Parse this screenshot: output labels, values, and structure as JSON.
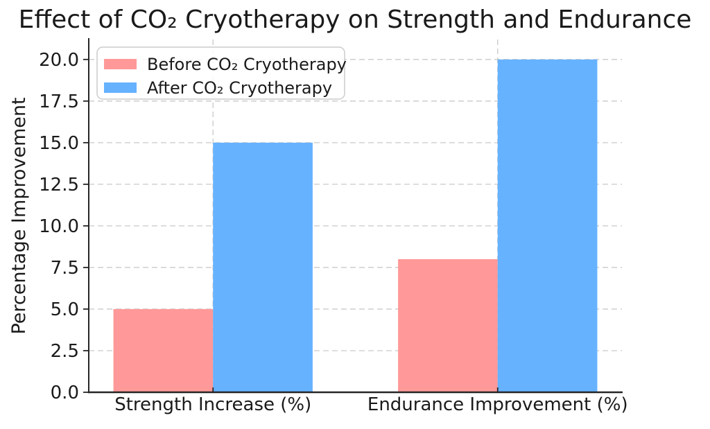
{
  "chart_data": {
    "type": "bar",
    "title": "Effect of CO₂ Cryotherapy on Strength and Endurance",
    "categories": [
      "Strength Increase (%)",
      "Endurance Improvement (%)"
    ],
    "series": [
      {
        "name": "Before CO₂ Cryotherapy",
        "color": "#FF9999",
        "values": [
          5,
          8
        ]
      },
      {
        "name": "After CO₂ Cryotherapy",
        "color": "#66B2FF",
        "values": [
          15,
          20
        ]
      }
    ],
    "xlabel": "",
    "ylabel": "Percentage Improvement",
    "yticks": [
      0.0,
      2.5,
      5.0,
      7.5,
      10.0,
      12.5,
      15.0,
      17.5,
      20.0
    ],
    "ytick_labels": [
      "0.0",
      "2.5",
      "5.0",
      "7.5",
      "10.0",
      "12.5",
      "15.0",
      "17.5",
      "20.0"
    ],
    "ylim": [
      0,
      21.2
    ],
    "grid": true,
    "grid_style": "dashed",
    "legend_position": "upper left",
    "colors": {
      "background": "#ffffff",
      "text": "#1a1a1a",
      "grid": "#c9c9c9",
      "spine": "#262626",
      "legend_border": "#cccccc"
    }
  }
}
